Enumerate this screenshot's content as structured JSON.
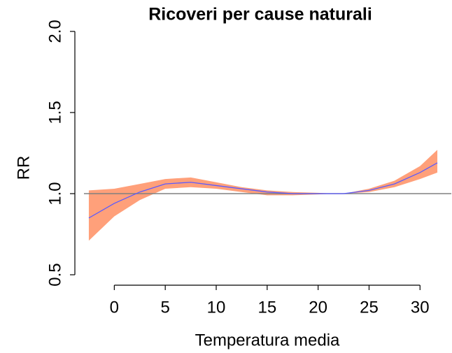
{
  "chart_data": {
    "type": "line",
    "title": "Ricoveri per cause naturali",
    "x_label": "Temperatura media",
    "y_label": "RR",
    "x": [
      -2.5,
      0,
      2.5,
      5,
      7.5,
      10,
      12.5,
      15,
      17.5,
      20,
      21.5,
      22.5,
      25,
      27.5,
      30,
      31.7
    ],
    "series": [
      {
        "color": "#5a5aff",
        "values": [
          0.85,
          0.94,
          1.01,
          1.06,
          1.07,
          1.05,
          1.03,
          1.01,
          1.0,
          1.0,
          1.0,
          1.0,
          1.02,
          1.06,
          1.13,
          1.19
        ],
        "lower": [
          0.71,
          0.86,
          0.96,
          1.03,
          1.04,
          1.03,
          1.01,
          0.99,
          0.99,
          0.995,
          1.0,
          1.0,
          1.01,
          1.04,
          1.09,
          1.13
        ],
        "upper": [
          1.02,
          1.03,
          1.06,
          1.09,
          1.1,
          1.07,
          1.04,
          1.02,
          1.01,
          1.005,
          1.0,
          1.0,
          1.03,
          1.08,
          1.17,
          1.27
        ],
        "band_color": "#ffa07a"
      }
    ],
    "reference_line": 1,
    "reference_color": "#808080",
    "xlim": [
      -3.87,
      33.07
    ],
    "ylim": [
      0.44,
      2.06
    ],
    "xticks": [
      0,
      5,
      10,
      15,
      20,
      25,
      30
    ],
    "yticks": [
      {
        "value": 0.5,
        "label": "0.5"
      },
      {
        "value": 1.0,
        "label": "1.0"
      },
      {
        "value": 1.5,
        "label": "1.5"
      },
      {
        "value": 2.0,
        "label": "2.0"
      }
    ]
  }
}
